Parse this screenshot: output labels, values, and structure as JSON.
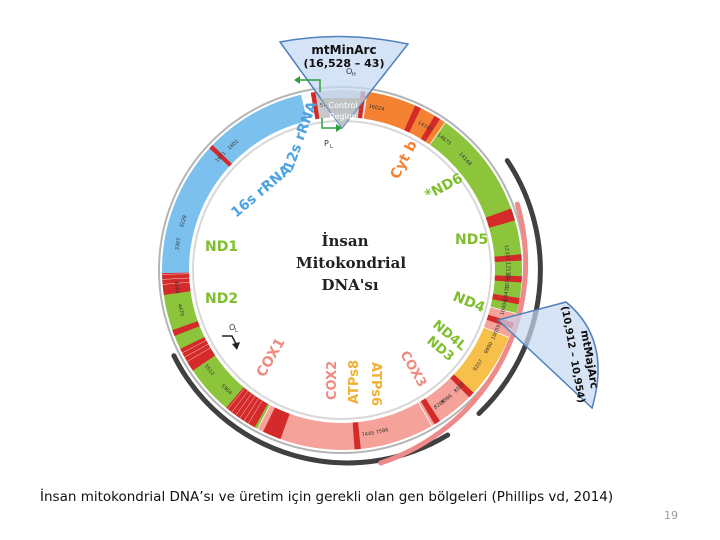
{
  "slide": {
    "caption": "İnsan mitokondrial DNA’sı ve üretim için gerekli olan gen bölgeleri (Phillips vd, 2014)",
    "page_number": "19"
  },
  "diagram": {
    "center_title": [
      "İnsan",
      "Mitokondrial",
      "DNA'sı"
    ],
    "control_region": [
      "Control",
      "Region"
    ],
    "callouts": {
      "top": {
        "title": "mtMinArc",
        "range": "(16,528 – 43)"
      },
      "right": {
        "title": "mtMajArc",
        "range": "(10,912 – 10,954)"
      }
    },
    "markers": {
      "oh": "O",
      "oh_sub": "H",
      "pl": "P",
      "pl_sub": "L",
      "ol": "O",
      "ol_sub": "L"
    },
    "genes": {
      "rrna12": "12s rRNA",
      "rrna16": "16s rRNA",
      "nd1": "ND1",
      "nd2": "ND2",
      "cox1": "COX1",
      "cox2": "COX2",
      "atp8": "ATPs8",
      "atp6": "ATPs6",
      "cox3": "COX3",
      "nd3": "ND3",
      "nd4l": "ND4L",
      "nd4": "ND4",
      "nd5": "ND5",
      "nd6": "*ND6",
      "cytb": "Cyt b"
    },
    "positions": [
      "576",
      "16024",
      "15887",
      "1601",
      "1671",
      "3229",
      "3307",
      "4262",
      "4470",
      "5512",
      "5904",
      "7445",
      "7586",
      "8269",
      "8366",
      "8527",
      "9207",
      "9990",
      "10059",
      "10404",
      "10470",
      "10766",
      "12137",
      "12337",
      "14148",
      "14673",
      "14747"
    ],
    "colors": {
      "rrna": "#7cc0ee",
      "nd": "#8cc43c",
      "cox": "#f4a29a",
      "atp": "#f7c04a",
      "cytb": "#f58232",
      "control": "#c8c8c8",
      "trna": "#d42a2a",
      "arc_dark": "#404040",
      "arc_pink": "#ee8a8a",
      "callout": "#c6d9f1",
      "callout_stroke": "#4f81bd"
    }
  }
}
